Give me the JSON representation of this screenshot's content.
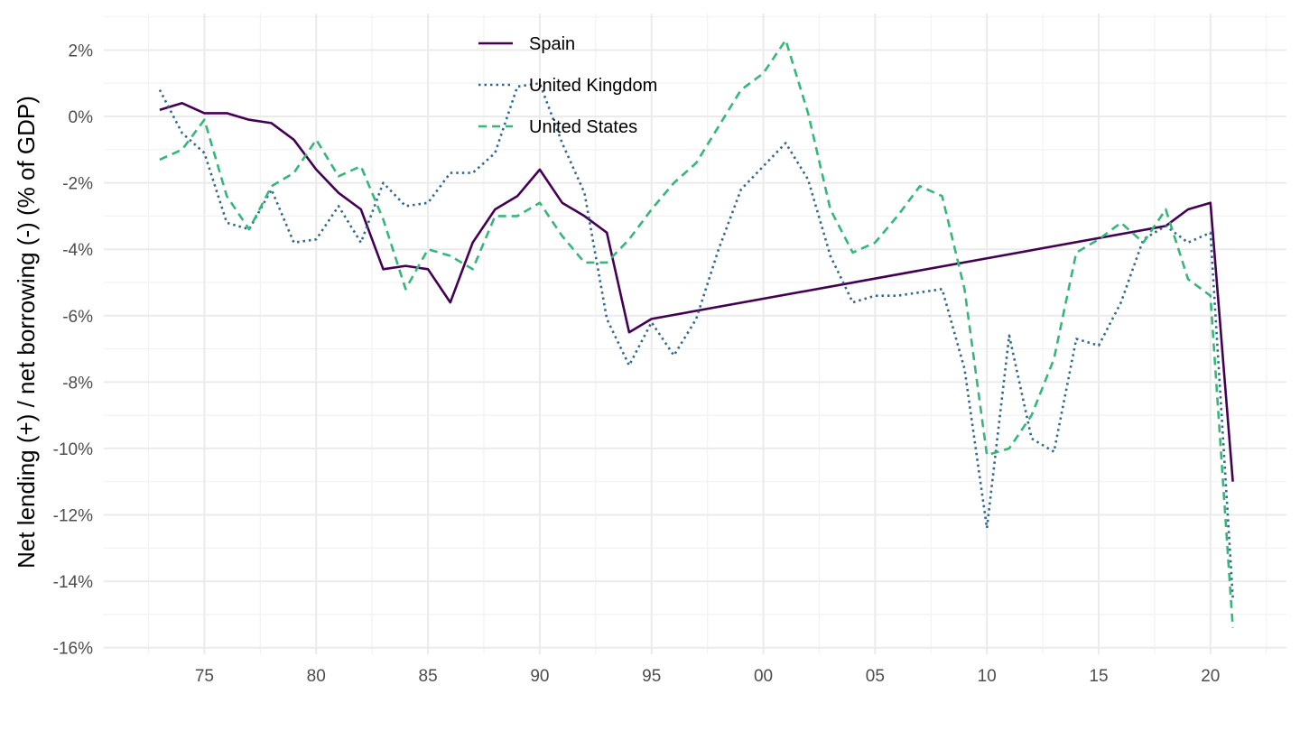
{
  "chart_data": {
    "type": "line",
    "title": "",
    "xlabel": "",
    "ylabel": "Net lending (+) / net borrowing (-) (% of GDP)",
    "xlim": [
      1970.5,
      2023.4
    ],
    "ylim": [
      -16.2,
      3.1
    ],
    "x_ticks": [
      1975,
      1980,
      1985,
      1990,
      1995,
      2000,
      2005,
      2010,
      2015,
      2020
    ],
    "x_tick_labels": [
      "75",
      "80",
      "85",
      "90",
      "95",
      "00",
      "05",
      "10",
      "15",
      "20"
    ],
    "y_ticks": [
      2,
      0,
      -2,
      -4,
      -6,
      -8,
      -10,
      -12,
      -14,
      -16
    ],
    "y_tick_labels": [
      "2%",
      "0%",
      "-2%",
      "-4%",
      "-6%",
      "-8%",
      "-10%",
      "-12%",
      "-14%",
      "-16%"
    ],
    "grid": true,
    "legend_position": "top-center",
    "series": [
      {
        "name": "Spain",
        "color": "#440154",
        "dash": "solid",
        "points": [
          [
            1973,
            0.2
          ],
          [
            1974,
            0.4
          ],
          [
            1975,
            0.1
          ],
          [
            1976,
            0.1
          ],
          [
            1977,
            -0.1
          ],
          [
            1978,
            -0.2
          ],
          [
            1979,
            -0.7
          ],
          [
            1980,
            -1.6
          ],
          [
            1981,
            -2.3
          ],
          [
            1982,
            -2.8
          ],
          [
            1983,
            -4.6
          ],
          [
            1984,
            -4.5
          ],
          [
            1985,
            -4.6
          ],
          [
            1986,
            -5.6
          ],
          [
            1987,
            -3.8
          ],
          [
            1988,
            -2.8
          ],
          [
            1989,
            -2.4
          ],
          [
            1990,
            -1.6
          ],
          [
            1991,
            -2.6
          ],
          [
            1992,
            -3.0
          ],
          [
            1993,
            -3.5
          ],
          [
            1994,
            -6.5
          ],
          [
            1995,
            -6.1
          ],
          [
            2018,
            -3.3
          ],
          [
            2019,
            -2.8
          ],
          [
            2020,
            -2.6
          ],
          [
            2021,
            -11.0
          ]
        ]
      },
      {
        "name": "United Kingdom",
        "color": "#31688e",
        "dash": "dotted",
        "points": [
          [
            1973,
            0.8
          ],
          [
            1974,
            -0.5
          ],
          [
            1975,
            -1.1
          ],
          [
            1976,
            -3.2
          ],
          [
            1977,
            -3.4
          ],
          [
            1978,
            -2.2
          ],
          [
            1979,
            -3.8
          ],
          [
            1980,
            -3.7
          ],
          [
            1981,
            -2.7
          ],
          [
            1982,
            -3.8
          ],
          [
            1983,
            -2.0
          ],
          [
            1984,
            -2.7
          ],
          [
            1985,
            -2.6
          ],
          [
            1986,
            -1.7
          ],
          [
            1987,
            -1.7
          ],
          [
            1988,
            -1.1
          ],
          [
            1989,
            0.9
          ],
          [
            1990,
            1.0
          ],
          [
            1991,
            -0.8
          ],
          [
            1992,
            -2.3
          ],
          [
            1993,
            -6.1
          ],
          [
            1994,
            -7.5
          ],
          [
            1995,
            -6.2
          ],
          [
            1996,
            -7.2
          ],
          [
            1997,
            -6.1
          ],
          [
            1998,
            -4.0
          ],
          [
            1999,
            -2.2
          ],
          [
            2000,
            -1.5
          ],
          [
            2001,
            -0.8
          ],
          [
            2002,
            -1.9
          ],
          [
            2003,
            -4.2
          ],
          [
            2004,
            -5.6
          ],
          [
            2005,
            -5.4
          ],
          [
            2006,
            -5.4
          ],
          [
            2007,
            -5.3
          ],
          [
            2008,
            -5.2
          ],
          [
            2009,
            -7.6
          ],
          [
            2010,
            -12.4
          ],
          [
            2011,
            -6.6
          ],
          [
            2012,
            -9.7
          ],
          [
            2013,
            -10.1
          ],
          [
            2014,
            -6.7
          ],
          [
            2015,
            -6.9
          ],
          [
            2016,
            -5.6
          ],
          [
            2017,
            -3.7
          ],
          [
            2018,
            -3.3
          ],
          [
            2019,
            -3.8
          ],
          [
            2020,
            -3.5
          ],
          [
            2021,
            -14.5
          ]
        ]
      },
      {
        "name": "United States",
        "color": "#35b779",
        "dash": "dashed",
        "points": [
          [
            1973,
            -1.3
          ],
          [
            1974,
            -1.0
          ],
          [
            1975,
            -0.1
          ],
          [
            1976,
            -2.4
          ],
          [
            1977,
            -3.4
          ],
          [
            1978,
            -2.1
          ],
          [
            1979,
            -1.7
          ],
          [
            1980,
            -0.7
          ],
          [
            1981,
            -1.8
          ],
          [
            1982,
            -1.5
          ],
          [
            1983,
            -3.1
          ],
          [
            1984,
            -5.2
          ],
          [
            1985,
            -4.0
          ],
          [
            1986,
            -4.2
          ],
          [
            1987,
            -4.6
          ],
          [
            1988,
            -3.0
          ],
          [
            1989,
            -3.0
          ],
          [
            1990,
            -2.6
          ],
          [
            1991,
            -3.6
          ],
          [
            1992,
            -4.4
          ],
          [
            1993,
            -4.4
          ],
          [
            1994,
            -3.7
          ],
          [
            1995,
            -2.8
          ],
          [
            1996,
            -2.0
          ],
          [
            1997,
            -1.4
          ],
          [
            1998,
            -0.3
          ],
          [
            1999,
            0.8
          ],
          [
            2000,
            1.3
          ],
          [
            2001,
            2.3
          ],
          [
            2002,
            0.1
          ],
          [
            2003,
            -2.8
          ],
          [
            2004,
            -4.1
          ],
          [
            2005,
            -3.8
          ],
          [
            2006,
            -3.0
          ],
          [
            2007,
            -2.1
          ],
          [
            2008,
            -2.4
          ],
          [
            2009,
            -5.2
          ],
          [
            2010,
            -10.2
          ],
          [
            2011,
            -10.0
          ],
          [
            2012,
            -9.0
          ],
          [
            2013,
            -7.3
          ],
          [
            2014,
            -4.1
          ],
          [
            2015,
            -3.7
          ],
          [
            2016,
            -3.2
          ],
          [
            2017,
            -3.8
          ],
          [
            2018,
            -2.8
          ],
          [
            2019,
            -4.9
          ],
          [
            2020,
            -5.4
          ],
          [
            2021,
            -15.4
          ]
        ]
      }
    ]
  }
}
